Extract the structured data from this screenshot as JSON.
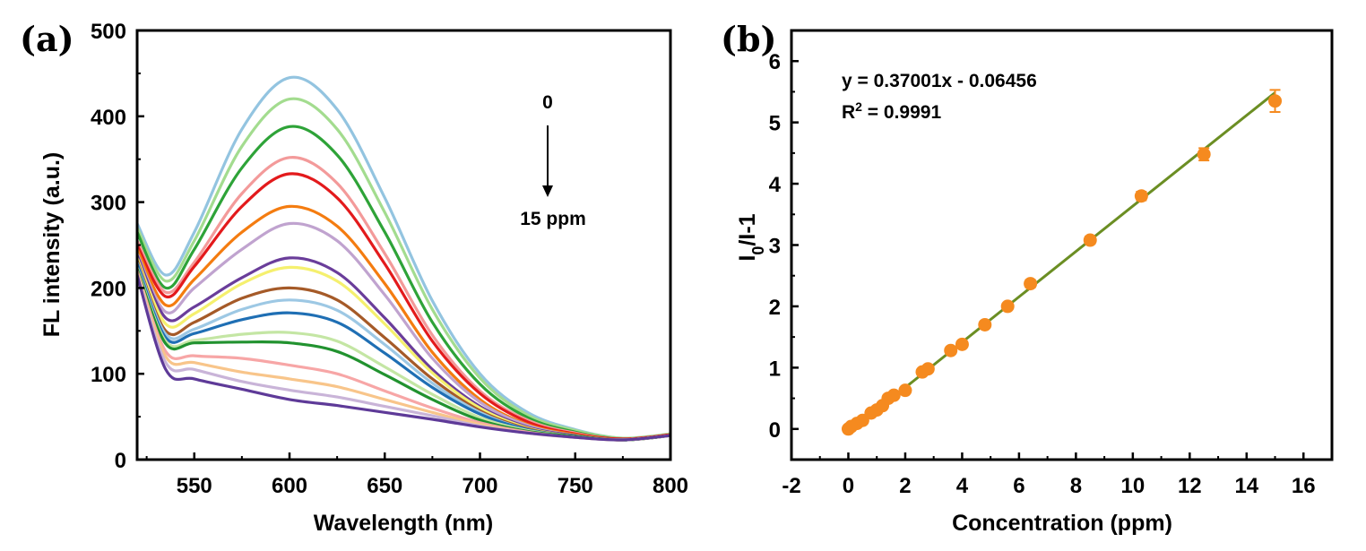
{
  "chart_data": [
    {
      "type": "line",
      "panel_label": "(a)",
      "xlabel": "Wavelength (nm)",
      "ylabel": "FL intensity (a.u.)",
      "xlim": [
        520,
        800
      ],
      "ylim": [
        0,
        500
      ],
      "xticks": [
        550,
        600,
        650,
        700,
        750,
        800
      ],
      "yticks": [
        0,
        100,
        200,
        300,
        400,
        500
      ],
      "annotation": {
        "top_text": "0",
        "bottom_text": "15 ppm"
      },
      "grid": false,
      "x": [
        520,
        535,
        550,
        575,
        600,
        625,
        650,
        675,
        700,
        725,
        750,
        775,
        800
      ],
      "series": [
        {
          "color": "#93c4e0",
          "values": [
            275,
            215,
            265,
            385,
            445,
            408,
            305,
            185,
            100,
            55,
            35,
            25,
            30
          ]
        },
        {
          "color": "#a3dc8f",
          "values": [
            270,
            208,
            255,
            365,
            420,
            385,
            288,
            175,
            95,
            52,
            34,
            25,
            30
          ]
        },
        {
          "color": "#2ea338",
          "values": [
            265,
            200,
            245,
            340,
            388,
            355,
            265,
            160,
            88,
            49,
            32,
            24,
            29
          ]
        },
        {
          "color": "#f39a9a",
          "values": [
            255,
            195,
            230,
            310,
            352,
            322,
            240,
            145,
            80,
            46,
            31,
            24,
            29
          ]
        },
        {
          "color": "#e31a1c",
          "values": [
            250,
            190,
            225,
            295,
            333,
            305,
            228,
            138,
            77,
            44,
            30,
            24,
            29
          ]
        },
        {
          "color": "#f47c10",
          "values": [
            245,
            180,
            210,
            265,
            295,
            272,
            205,
            125,
            70,
            41,
            29,
            23,
            28
          ]
        },
        {
          "color": "#c0a3cf",
          "values": [
            240,
            172,
            200,
            245,
            275,
            255,
            192,
            118,
            67,
            40,
            28,
            23,
            28
          ]
        },
        {
          "color": "#6a3d9a",
          "values": [
            238,
            165,
            178,
            212,
            235,
            218,
            165,
            105,
            62,
            38,
            28,
            23,
            28
          ]
        },
        {
          "color": "#f5f06e",
          "values": [
            235,
            158,
            170,
            205,
            224,
            208,
            158,
            101,
            60,
            37,
            27,
            23,
            28
          ]
        },
        {
          "color": "#a55a28",
          "values": [
            232,
            150,
            160,
            188,
            200,
            186,
            142,
            94,
            57,
            36,
            27,
            23,
            28
          ]
        },
        {
          "color": "#9dc8e4",
          "values": [
            230,
            146,
            152,
            175,
            186,
            174,
            134,
            89,
            55,
            35,
            27,
            23,
            28
          ]
        },
        {
          "color": "#1f6fb4",
          "values": [
            228,
            142,
            147,
            163,
            171,
            160,
            124,
            84,
            53,
            35,
            27,
            23,
            28
          ]
        },
        {
          "color": "#c4e6a4",
          "values": [
            224,
            138,
            139,
            146,
            148,
            138,
            108,
            76,
            49,
            34,
            27,
            23,
            28
          ]
        },
        {
          "color": "#21922f",
          "values": [
            222,
            135,
            136,
            137,
            136,
            126,
            99,
            70,
            46,
            33,
            27,
            23,
            28
          ]
        },
        {
          "color": "#f7a6a6",
          "values": [
            220,
            126,
            121,
            118,
            110,
            100,
            80,
            60,
            43,
            32,
            26,
            23,
            28
          ]
        },
        {
          "color": "#f8c58a",
          "values": [
            218,
            120,
            113,
            102,
            94,
            85,
            70,
            55,
            41,
            31,
            26,
            23,
            28
          ]
        },
        {
          "color": "#c9b4d8",
          "values": [
            216,
            113,
            105,
            91,
            81,
            73,
            62,
            51,
            39,
            31,
            26,
            23,
            28
          ]
        },
        {
          "color": "#5e3a98",
          "values": [
            215,
            105,
            94,
            82,
            70,
            63,
            55,
            47,
            38,
            31,
            26,
            23,
            28
          ]
        }
      ]
    },
    {
      "type": "scatter",
      "panel_label": "(b)",
      "xlabel": "Concentration (ppm)",
      "ylabel_main": "I",
      "ylabel_sub": "0",
      "ylabel_rest": "/I-1",
      "xlim": [
        -2,
        17
      ],
      "ylim": [
        -0.5,
        6.5
      ],
      "xticks": [
        -2,
        0,
        2,
        4,
        6,
        8,
        10,
        12,
        14,
        16
      ],
      "yticks": [
        0,
        1,
        2,
        3,
        4,
        5,
        6
      ],
      "grid": false,
      "equation": "y = 0.37001x - 0.06456",
      "r2_prefix": "R",
      "r2_sup": "2",
      "r2_value": " = 0.9991",
      "marker_color": "#f58a1f",
      "fit_color": "#6b8e23",
      "fit": {
        "slope": 0.37001,
        "intercept": -0.06456,
        "x_range": [
          0,
          15
        ]
      },
      "points": [
        {
          "x": 0,
          "y": 0,
          "err": 0.03
        },
        {
          "x": 0.1,
          "y": 0.04,
          "err": 0.03
        },
        {
          "x": 0.3,
          "y": 0.09,
          "err": 0.03
        },
        {
          "x": 0.5,
          "y": 0.14,
          "err": 0.03
        },
        {
          "x": 0.8,
          "y": 0.26,
          "err": 0.03
        },
        {
          "x": 1.0,
          "y": 0.31,
          "err": 0.03
        },
        {
          "x": 1.2,
          "y": 0.38,
          "err": 0.03
        },
        {
          "x": 1.4,
          "y": 0.5,
          "err": 0.04
        },
        {
          "x": 1.6,
          "y": 0.55,
          "err": 0.04
        },
        {
          "x": 2.0,
          "y": 0.63,
          "err": 0.04
        },
        {
          "x": 2.6,
          "y": 0.93,
          "err": 0.04
        },
        {
          "x": 2.8,
          "y": 0.98,
          "err": 0.04
        },
        {
          "x": 3.6,
          "y": 1.28,
          "err": 0.05
        },
        {
          "x": 4.0,
          "y": 1.38,
          "err": 0.05
        },
        {
          "x": 4.8,
          "y": 1.7,
          "err": 0.05
        },
        {
          "x": 5.6,
          "y": 2.0,
          "err": 0.05
        },
        {
          "x": 6.4,
          "y": 2.37,
          "err": 0.06
        },
        {
          "x": 8.5,
          "y": 3.08,
          "err": 0.06
        },
        {
          "x": 10.3,
          "y": 3.8,
          "err": 0.07
        },
        {
          "x": 12.5,
          "y": 4.48,
          "err": 0.1
        },
        {
          "x": 15.0,
          "y": 5.35,
          "err": 0.18
        }
      ]
    }
  ]
}
